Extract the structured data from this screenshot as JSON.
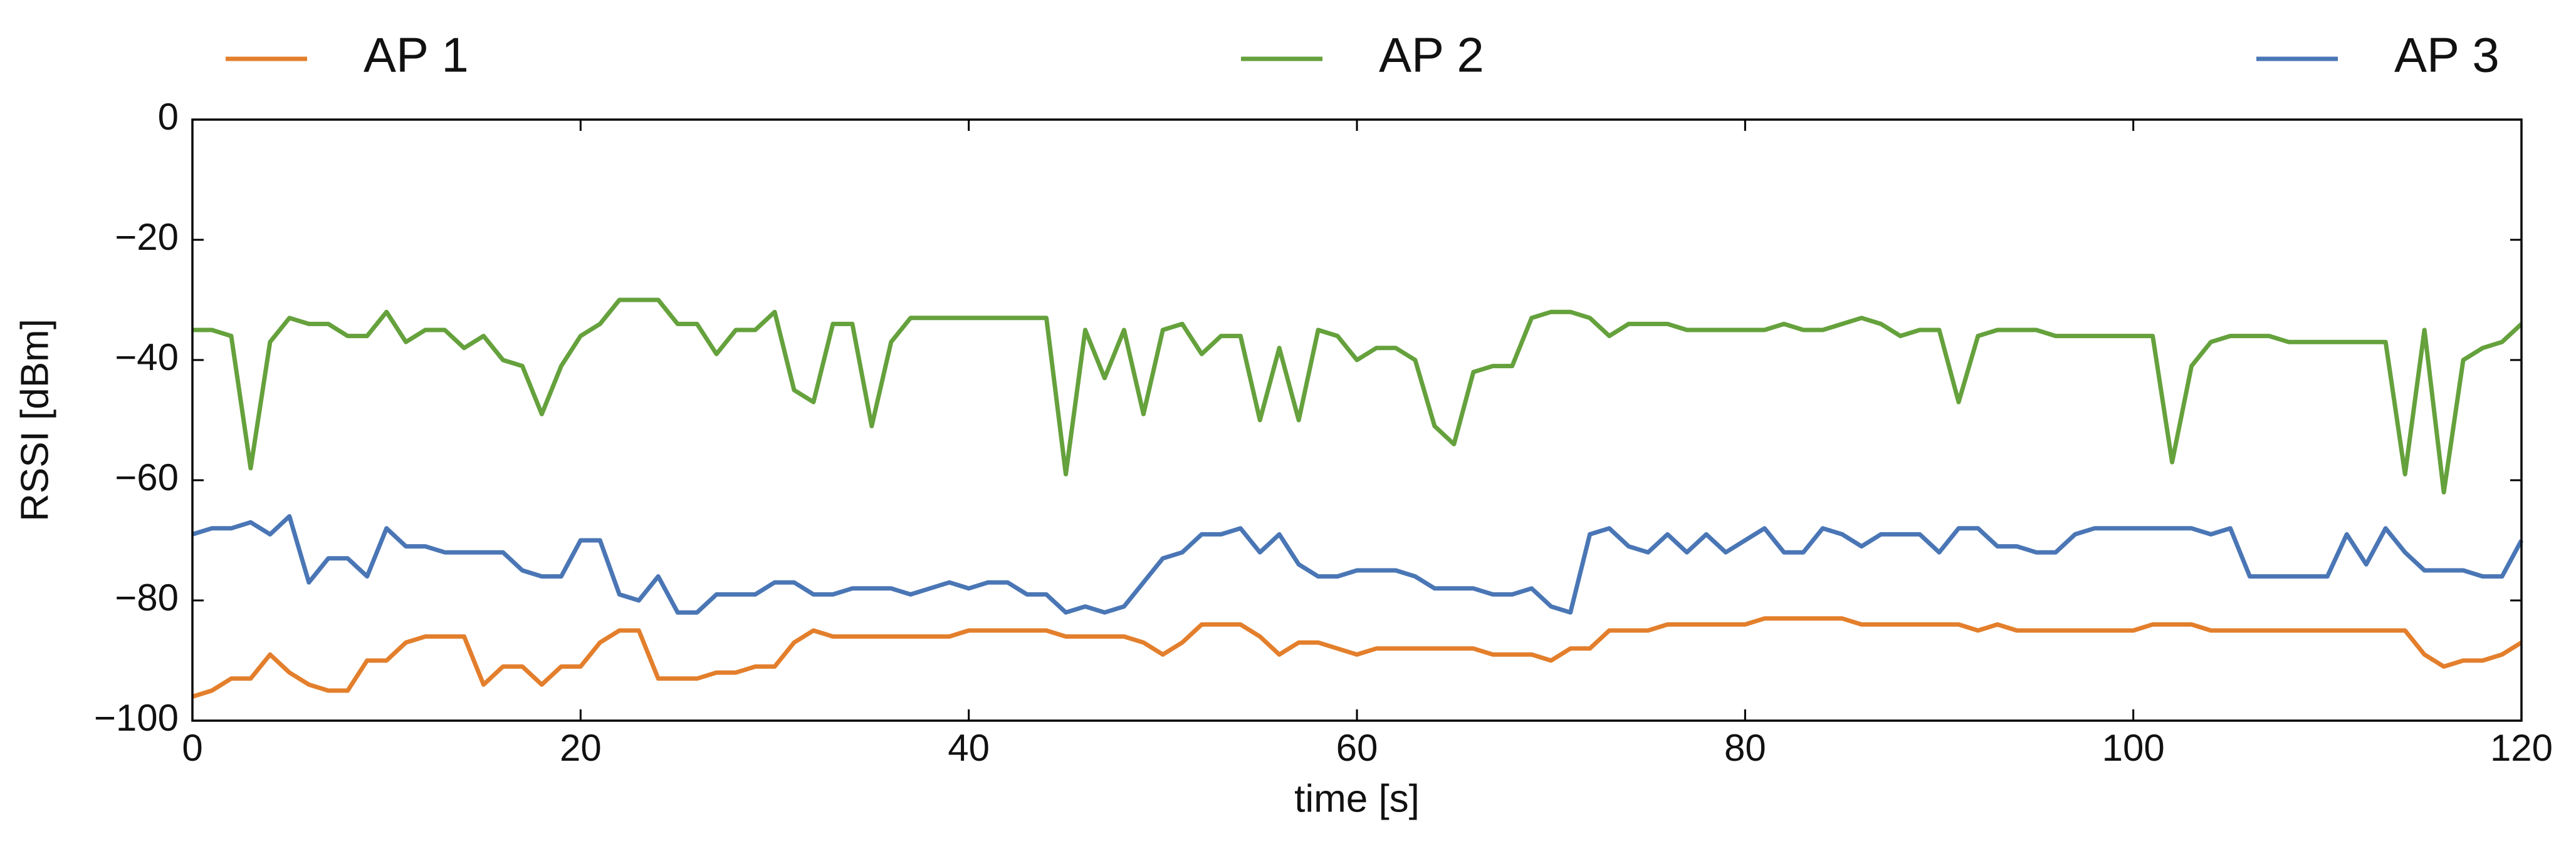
{
  "chart_data": {
    "type": "line",
    "xlabel": "time [s]",
    "ylabel": "RSSI [dBm]",
    "xlim": [
      0,
      120
    ],
    "ylim": [
      -100,
      0
    ],
    "xticks": [
      0,
      20,
      40,
      60,
      80,
      100,
      120
    ],
    "yticks": [
      {
        "value": -100,
        "label": "−100"
      },
      {
        "value": -80,
        "label": "−80"
      },
      {
        "value": -60,
        "label": "−60"
      },
      {
        "value": -40,
        "label": "−40"
      },
      {
        "value": -20,
        "label": "−20"
      },
      0
    ],
    "grid": false,
    "legend_loc": "top",
    "x": [
      0,
      1,
      2,
      3,
      4,
      5,
      6,
      7,
      8,
      9,
      10,
      11,
      12,
      13,
      14,
      15,
      16,
      17,
      18,
      19,
      20,
      21,
      22,
      23,
      24,
      25,
      26,
      27,
      28,
      29,
      30,
      31,
      32,
      33,
      34,
      35,
      36,
      37,
      38,
      39,
      40,
      41,
      42,
      43,
      44,
      45,
      46,
      47,
      48,
      49,
      50,
      51,
      52,
      53,
      54,
      55,
      56,
      57,
      58,
      59,
      60,
      61,
      62,
      63,
      64,
      65,
      66,
      67,
      68,
      69,
      70,
      71,
      72,
      73,
      74,
      75,
      76,
      77,
      78,
      79,
      80,
      81,
      82,
      83,
      84,
      85,
      86,
      87,
      88,
      89,
      90,
      91,
      92,
      93,
      94,
      95,
      96,
      97,
      98,
      99,
      100,
      101,
      102,
      103,
      104,
      105,
      106,
      107,
      108,
      109,
      110,
      111,
      112,
      113,
      114,
      115,
      116,
      117,
      118,
      119,
      120
    ],
    "series": [
      {
        "name": "AP 1",
        "color": "#e37f2c",
        "values": [
          -96,
          -95,
          -93,
          -93,
          -89,
          -92,
          -94,
          -95,
          -95,
          -90,
          -90,
          -87,
          -86,
          -86,
          -86,
          -94,
          -91,
          -91,
          -94,
          -91,
          -91,
          -87,
          -85,
          -85,
          -93,
          -93,
          -93,
          -92,
          -92,
          -91,
          -91,
          -87,
          -85,
          -86,
          -86,
          -86,
          -86,
          -86,
          -86,
          -86,
          -85,
          -85,
          -85,
          -85,
          -85,
          -86,
          -86,
          -86,
          -86,
          -87,
          -89,
          -87,
          -84,
          -84,
          -84,
          -86,
          -89,
          -87,
          -87,
          -88,
          -89,
          -88,
          -88,
          -88,
          -88,
          -88,
          -88,
          -89,
          -89,
          -89,
          -90,
          -88,
          -88,
          -85,
          -85,
          -85,
          -84,
          -84,
          -84,
          -84,
          -84,
          -83,
          -83,
          -83,
          -83,
          -83,
          -84,
          -84,
          -84,
          -84,
          -84,
          -84,
          -85,
          -84,
          -85,
          -85,
          -85,
          -85,
          -85,
          -85,
          -85,
          -84,
          -84,
          -84,
          -85,
          -85,
          -85,
          -85,
          -85,
          -85,
          -85,
          -85,
          -85,
          -85,
          -85,
          -89,
          -91,
          -90,
          -90,
          -89,
          -87
        ]
      },
      {
        "name": "AP 2",
        "color": "#65a13c",
        "values": [
          -35,
          -35,
          -36,
          -58,
          -37,
          -33,
          -34,
          -34,
          -36,
          -36,
          -32,
          -37,
          -35,
          -35,
          -38,
          -36,
          -40,
          -41,
          -49,
          -41,
          -36,
          -34,
          -30,
          -30,
          -30,
          -34,
          -34,
          -39,
          -35,
          -35,
          -32,
          -45,
          -47,
          -34,
          -34,
          -51,
          -37,
          -33,
          -33,
          -33,
          -33,
          -33,
          -33,
          -33,
          -33,
          -59,
          -35,
          -43,
          -35,
          -49,
          -35,
          -34,
          -39,
          -36,
          -36,
          -50,
          -38,
          -50,
          -35,
          -36,
          -40,
          -38,
          -38,
          -40,
          -51,
          -54,
          -42,
          -41,
          -41,
          -33,
          -32,
          -32,
          -33,
          -36,
          -34,
          -34,
          -34,
          -35,
          -35,
          -35,
          -35,
          -35,
          -34,
          -35,
          -35,
          -34,
          -33,
          -34,
          -36,
          -35,
          -35,
          -47,
          -36,
          -35,
          -35,
          -35,
          -36,
          -36,
          -36,
          -36,
          -36,
          -36,
          -57,
          -41,
          -37,
          -36,
          -36,
          -36,
          -37,
          -37,
          -37,
          -37,
          -37,
          -37,
          -59,
          -35,
          -62,
          -40,
          -38,
          -37,
          -34
        ]
      },
      {
        "name": "AP 3",
        "color": "#4a76b5",
        "values": [
          -69,
          -68,
          -68,
          -67,
          -69,
          -66,
          -77,
          -73,
          -73,
          -76,
          -68,
          -71,
          -71,
          -72,
          -72,
          -72,
          -72,
          -75,
          -76,
          -76,
          -70,
          -70,
          -79,
          -80,
          -76,
          -82,
          -82,
          -79,
          -79,
          -79,
          -77,
          -77,
          -79,
          -79,
          -78,
          -78,
          -78,
          -79,
          -78,
          -77,
          -78,
          -77,
          -77,
          -79,
          -79,
          -82,
          -81,
          -82,
          -81,
          -77,
          -73,
          -72,
          -69,
          -69,
          -68,
          -72,
          -69,
          -74,
          -76,
          -76,
          -75,
          -75,
          -75,
          -76,
          -78,
          -78,
          -78,
          -79,
          -79,
          -78,
          -81,
          -82,
          -69,
          -68,
          -71,
          -72,
          -69,
          -72,
          -69,
          -72,
          -70,
          -68,
          -72,
          -72,
          -68,
          -69,
          -71,
          -69,
          -69,
          -69,
          -72,
          -68,
          -68,
          -71,
          -71,
          -72,
          -72,
          -69,
          -68,
          -68,
          -68,
          -68,
          -68,
          -68,
          -69,
          -68,
          -76,
          -76,
          -76,
          -76,
          -76,
          -69,
          -74,
          -68,
          -72,
          -75,
          -75,
          -75,
          -76,
          -76,
          -70
        ]
      }
    ]
  }
}
